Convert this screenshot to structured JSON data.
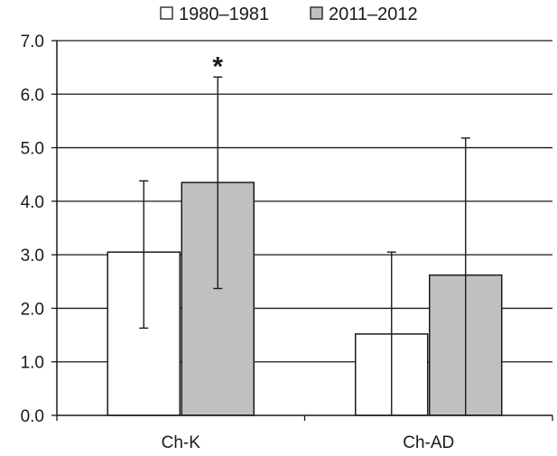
{
  "chart_data": {
    "type": "bar",
    "categories": [
      "Ch-K",
      "Ch-AD"
    ],
    "series": [
      {
        "name": "1980–1981",
        "values": [
          3.05,
          1.52
        ],
        "error_low": [
          1.63,
          0.0
        ],
        "error_high": [
          4.38,
          3.05
        ],
        "color": "#ffffff"
      },
      {
        "name": "2011–2012",
        "values": [
          4.35,
          2.62
        ],
        "error_low": [
          2.37,
          0.0
        ],
        "error_high": [
          6.32,
          5.18
        ],
        "color": "#c0c0c0"
      }
    ],
    "ylim": [
      0,
      7
    ],
    "yticks": [
      "0.0",
      "1.0",
      "2.0",
      "3.0",
      "4.0",
      "5.0",
      "6.0",
      "7.0"
    ],
    "grid": true,
    "legend_position": "top",
    "annotations": [
      {
        "text": "*",
        "category": "Ch-K",
        "series": "2011–2012"
      }
    ],
    "xlabel": "",
    "ylabel": "",
    "title": ""
  }
}
